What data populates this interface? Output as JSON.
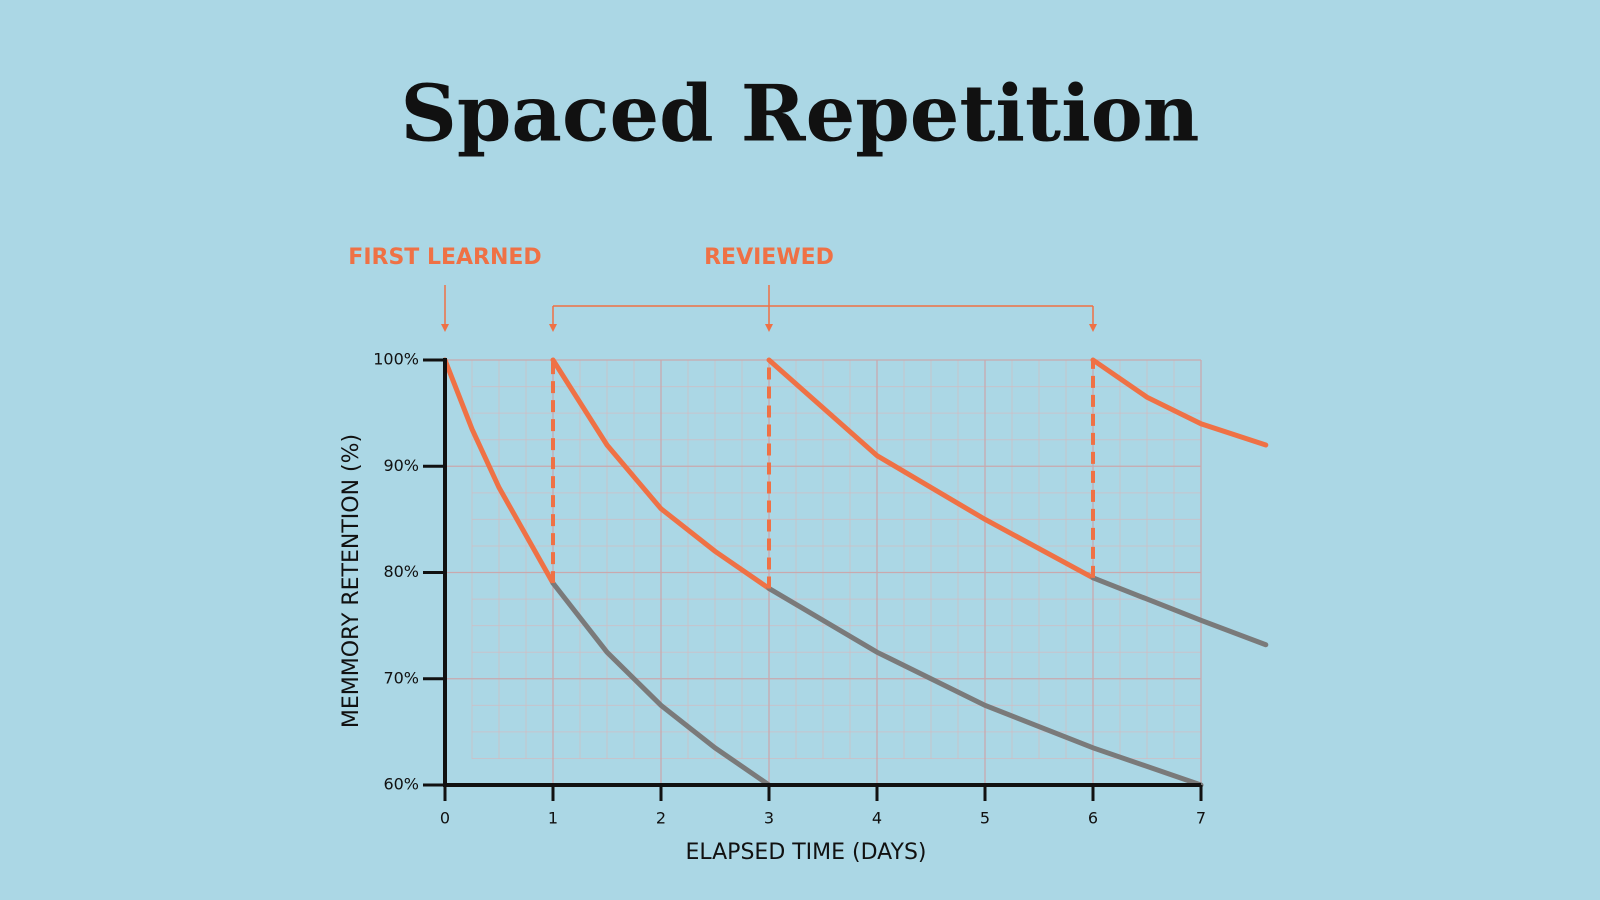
{
  "chart_data": {
    "type": "line",
    "title": "Spaced Repetition",
    "x_label": "ELAPSED TIME (DAYS)",
    "y_label": "MEMMORY RETENTION (%)",
    "xlim": [
      0,
      7
    ],
    "ylim": [
      60,
      100
    ],
    "xticks": [
      0,
      1,
      2,
      3,
      4,
      5,
      6,
      7
    ],
    "yticks": [
      {
        "value": 60,
        "label": "60%"
      },
      {
        "value": 70,
        "label": "70%"
      },
      {
        "value": 80,
        "label": "80%"
      },
      {
        "value": 90,
        "label": "90%"
      },
      {
        "value": 100,
        "label": "100%"
      }
    ],
    "grid": true,
    "annotations": [
      {
        "text": "FIRST LEARNED",
        "x": [
          0
        ],
        "color": "#ef7145"
      },
      {
        "text": "REVIEWED",
        "x": [
          1,
          3,
          6
        ],
        "color": "#ef7145"
      }
    ],
    "series": [
      {
        "color": "#ef7145",
        "x": [
          0,
          0.25,
          0.5,
          0.75,
          1
        ],
        "values": [
          100,
          93.5,
          88,
          83.5,
          79
        ]
      },
      {
        "color": "#7a7a7a",
        "x": [
          1,
          1.5,
          2,
          2.5,
          3
        ],
        "values": [
          79,
          72.5,
          67.5,
          63.5,
          60
        ]
      },
      {
        "color": "#ef7145",
        "x": [
          1,
          1.5,
          2,
          2.5,
          3
        ],
        "values": [
          100,
          92,
          86,
          82,
          78.5
        ]
      },
      {
        "color": "#7a7a7a",
        "x": [
          3,
          4,
          5,
          6,
          7
        ],
        "values": [
          78.5,
          72.5,
          67.5,
          63.5,
          60
        ]
      },
      {
        "color": "#ef7145",
        "x": [
          3,
          4,
          5,
          6
        ],
        "values": [
          100,
          91,
          85,
          79.5
        ]
      },
      {
        "color": "#7a7a7a",
        "x": [
          6,
          7,
          7.6
        ],
        "values": [
          79.5,
          75.5,
          73.2
        ]
      },
      {
        "color": "#ef7145",
        "x": [
          6,
          6.5,
          7,
          7.6
        ],
        "values": [
          100,
          96.5,
          94,
          92
        ]
      }
    ]
  }
}
